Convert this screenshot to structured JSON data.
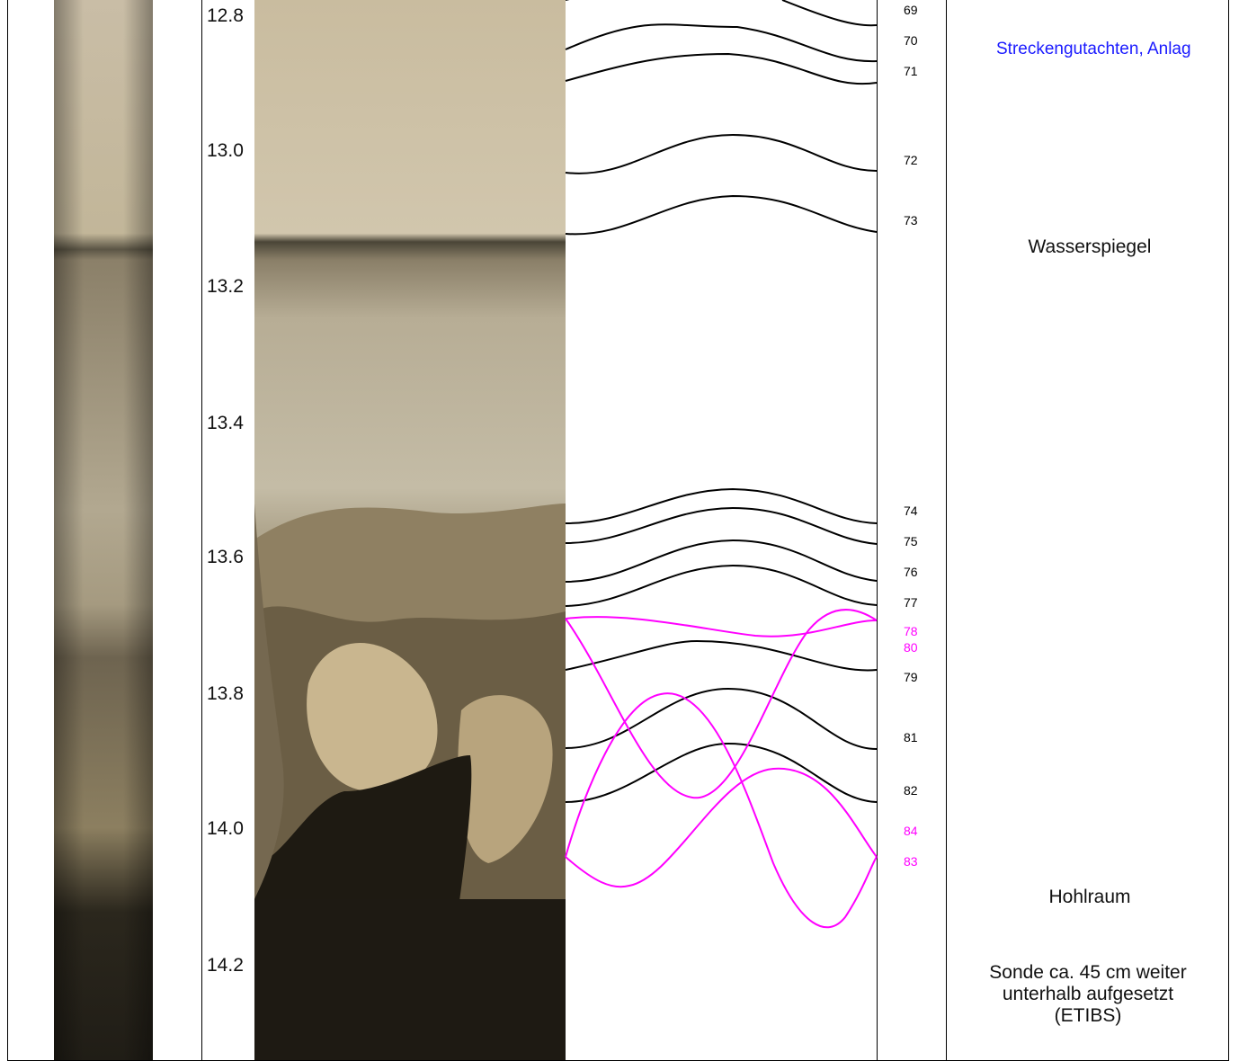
{
  "depth_labels": [
    "12.8",
    "13.0",
    "13.2",
    "13.4",
    "13.6",
    "13.8",
    "14.0",
    "14.2"
  ],
  "layers": [
    {
      "id": "69",
      "color": "#000000"
    },
    {
      "id": "70",
      "color": "#000000"
    },
    {
      "id": "71",
      "color": "#000000"
    },
    {
      "id": "72",
      "color": "#000000"
    },
    {
      "id": "73",
      "color": "#000000"
    },
    {
      "id": "74",
      "color": "#000000"
    },
    {
      "id": "75",
      "color": "#000000"
    },
    {
      "id": "76",
      "color": "#000000"
    },
    {
      "id": "77",
      "color": "#000000"
    },
    {
      "id": "78",
      "color": "#ff00ff"
    },
    {
      "id": "80",
      "color": "#ff00ff"
    },
    {
      "id": "79",
      "color": "#000000"
    },
    {
      "id": "81",
      "color": "#000000"
    },
    {
      "id": "82",
      "color": "#000000"
    },
    {
      "id": "84",
      "color": "#ff00ff"
    },
    {
      "id": "83",
      "color": "#ff00ff"
    }
  ],
  "annotations": {
    "link": "Streckengutachten, Anlag",
    "water_level": "Wasserspiegel",
    "cavity": "Hohlraum",
    "probe_line1": "Sonde ca. 45 cm weiter",
    "probe_line2": "unterhalb aufgesetzt",
    "probe_line3": "(ETIBS)"
  },
  "colors": {
    "bedding_plane": "#000000",
    "fracture": "#ff00ff",
    "link": "#1a1aff"
  }
}
